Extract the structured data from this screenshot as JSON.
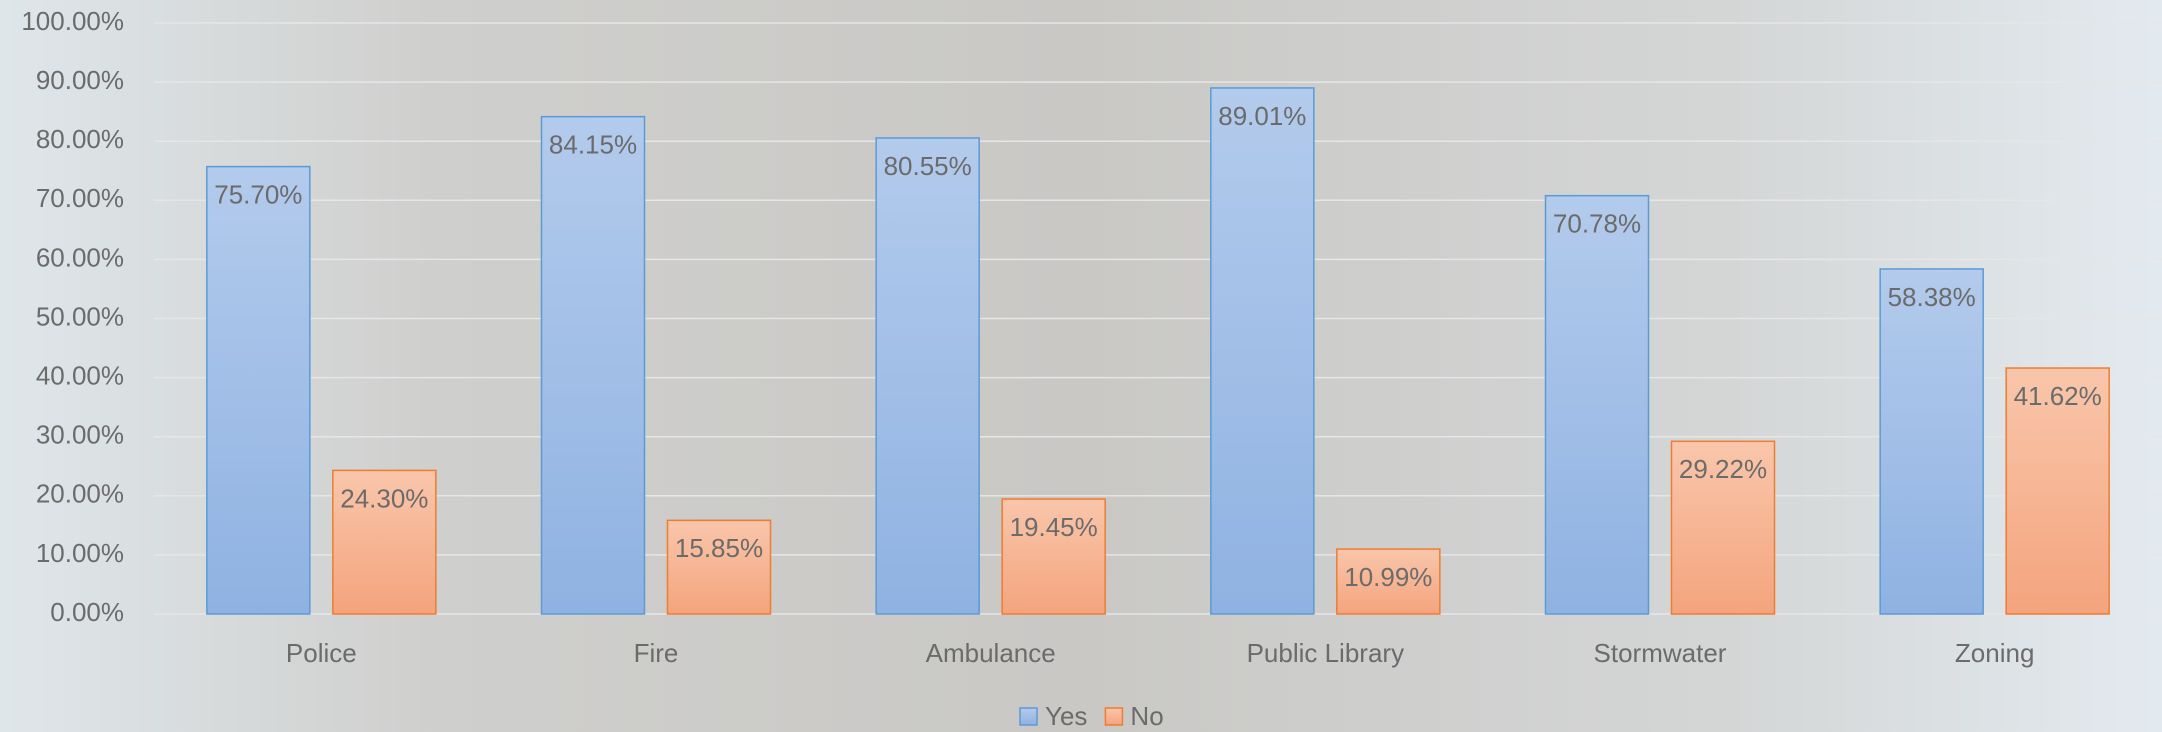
{
  "chart_data": {
    "type": "bar",
    "categories": [
      "Police",
      "Fire",
      "Ambulance",
      "Public Library",
      "Stormwater",
      "Zoning"
    ],
    "series": [
      {
        "name": "Yes",
        "color": "#9bbbe6",
        "values": [
          75.7,
          84.15,
          80.55,
          89.01,
          70.78,
          58.38
        ],
        "value_labels": [
          "75.70%",
          "84.15%",
          "80.55%",
          "89.01%",
          "70.78%",
          "58.38%"
        ]
      },
      {
        "name": "No",
        "color": "#f6b190",
        "values": [
          24.3,
          15.85,
          19.45,
          10.99,
          29.22,
          41.62
        ],
        "value_labels": [
          "24.30%",
          "15.85%",
          "19.45%",
          "10.99%",
          "29.22%",
          "41.62%"
        ]
      }
    ],
    "ylim": [
      0,
      100
    ],
    "yticks": [
      {
        "value": 0,
        "label": "0.00%"
      },
      {
        "value": 10,
        "label": "10.00%"
      },
      {
        "value": 20,
        "label": "20.00%"
      },
      {
        "value": 30,
        "label": "30.00%"
      },
      {
        "value": 40,
        "label": "40.00%"
      },
      {
        "value": 50,
        "label": "50.00%"
      },
      {
        "value": 60,
        "label": "60.00%"
      },
      {
        "value": 70,
        "label": "70.00%"
      },
      {
        "value": 80,
        "label": "80.00%"
      },
      {
        "value": 90,
        "label": "90.00%"
      },
      {
        "value": 100,
        "label": "100.00%"
      }
    ],
    "grid": true,
    "legend": "bottom"
  }
}
